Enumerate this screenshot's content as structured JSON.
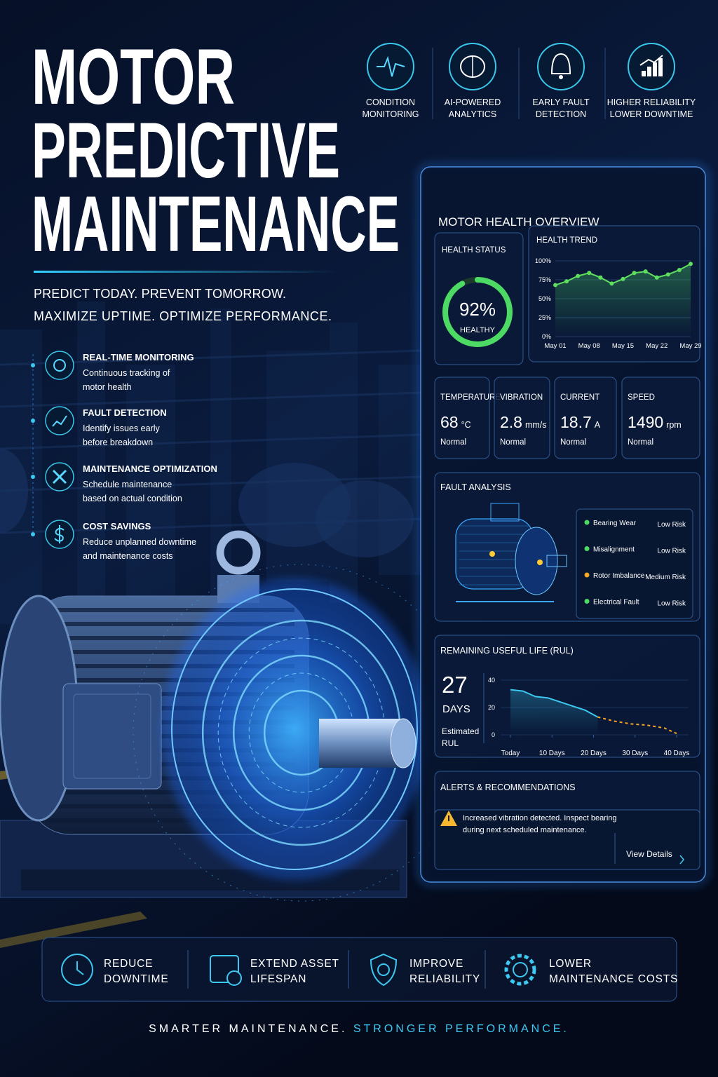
{
  "header": {
    "title": [
      "MOTOR",
      "PREDICTIVE",
      "MAINTENANCE"
    ],
    "tagline": [
      "PREDICT TODAY. PREVENT TOMORROW.",
      "MAXIMIZE UPTIME. OPTIMIZE PERFORMANCE."
    ]
  },
  "top_features": [
    {
      "label": [
        "CONDITION",
        "MONITORING"
      ]
    },
    {
      "label": [
        "AI-POWERED",
        "ANALYTICS"
      ]
    },
    {
      "label": [
        "EARLY FAULT",
        "DETECTION"
      ]
    },
    {
      "label": [
        "HIGHER RELIABILITY",
        "LOWER DOWNTIME"
      ]
    }
  ],
  "features": [
    {
      "title": "REAL-TIME MONITORING",
      "description": [
        "Continuous tracking of",
        "motor health"
      ]
    },
    {
      "title": "FAULT DETECTION",
      "description": [
        "Identify issues early",
        "before breakdown"
      ]
    },
    {
      "title": "MAINTENANCE OPTIMIZATION",
      "description": [
        "Schedule maintenance",
        "based on actual condition"
      ]
    },
    {
      "title": "COST SAVINGS",
      "description": [
        "Reduce unplanned downtime",
        "and maintenance costs"
      ]
    }
  ],
  "dashboard": {
    "title": "MOTOR HEALTH OVERVIEW",
    "health_status": {
      "title": "HEALTH STATUS",
      "value": 92,
      "value_label": "92%",
      "status": "HEALTHY",
      "color": "#4cd964"
    },
    "health_trend": {
      "title": "HEALTH TREND",
      "chart": {
        "type": "line",
        "categories": [
          "May 01",
          null,
          null,
          "May 08",
          null,
          null,
          "May 15",
          null,
          null,
          "May 22",
          null,
          null,
          "May 29"
        ],
        "values": [
          68,
          73,
          80,
          84,
          78,
          70,
          76,
          84,
          86,
          78,
          82,
          88,
          96
        ],
        "color": "#5ee05e",
        "ylim": [
          0,
          100
        ],
        "yticks": [
          {
            "value": 0,
            "label": "0%"
          },
          {
            "value": 25,
            "label": "25%"
          },
          {
            "value": 50,
            "label": "50%"
          },
          {
            "value": 75,
            "label": "75%"
          },
          {
            "value": 100,
            "label": "100%"
          }
        ],
        "grid": true
      }
    },
    "metrics": [
      {
        "name": "TEMPERATURE",
        "value": 68,
        "unit": "°C",
        "status": "Normal"
      },
      {
        "name": "VIBRATION",
        "value": 2.8,
        "unit": "mm/s",
        "status": "Normal"
      },
      {
        "name": "CURRENT",
        "value": 18.7,
        "unit": "A",
        "status": "Normal"
      },
      {
        "name": "SPEED",
        "value": 1490,
        "unit": "rpm",
        "status": "Normal"
      }
    ],
    "fault_analysis": {
      "title": "FAULT ANALYSIS",
      "items": [
        {
          "name": "Bearing Wear",
          "risk": "Low Risk",
          "color": "#4cd964"
        },
        {
          "name": "Misalignment",
          "risk": "Low Risk",
          "color": "#4cd964"
        },
        {
          "name": "Rotor Imbalance",
          "risk": "Medium Risk",
          "color": "#f5a623"
        },
        {
          "name": "Electrical Fault",
          "risk": "Low Risk",
          "color": "#4cd964"
        }
      ]
    },
    "rul": {
      "title": "REMAINING USEFUL LIFE (RUL)",
      "value": 27,
      "unit": "DAYS",
      "caption": [
        "Estimated",
        "RUL"
      ],
      "chart": {
        "type": "line",
        "xlim": [
          0,
          40
        ],
        "xticks": [
          {
            "value": 0,
            "label": "Today"
          },
          {
            "value": 10,
            "label": "10 Days"
          },
          {
            "value": 20,
            "label": "20 Days"
          },
          {
            "value": 30,
            "label": "30 Days"
          },
          {
            "value": 40,
            "label": "40 Days"
          }
        ],
        "ylim": [
          0,
          40
        ],
        "yticks": [
          0,
          20,
          40
        ],
        "grid": true,
        "series": [
          {
            "color": "#3cc8f0",
            "style": "solid",
            "x": [
              0,
              3,
              6,
              9,
              12,
              15,
              18,
              21
            ],
            "values": [
              33,
              32,
              28,
              27,
              24,
              21,
              18,
              13
            ]
          },
          {
            "color": "#f5a623",
            "style": "dashed",
            "x": [
              21,
              25,
              29,
              33,
              37,
              40
            ],
            "values": [
              13,
              10,
              8,
              7,
              5,
              1
            ]
          }
        ]
      }
    },
    "alerts": {
      "title": "ALERTS & RECOMMENDATIONS",
      "message": [
        "Increased vibration detected. Inspect bearing",
        "during next scheduled maintenance."
      ],
      "action": "View Details"
    }
  },
  "benefits": [
    {
      "label": [
        "REDUCE",
        "DOWNTIME"
      ]
    },
    {
      "label": [
        "EXTEND ASSET",
        "LIFESPAN"
      ]
    },
    {
      "label": [
        "IMPROVE",
        "RELIABILITY"
      ]
    },
    {
      "label": [
        "LOWER",
        "MAINTENANCE COSTS"
      ]
    }
  ],
  "footer": [
    "SMARTER MAINTENANCE.",
    "STRONGER PERFORMANCE."
  ]
}
